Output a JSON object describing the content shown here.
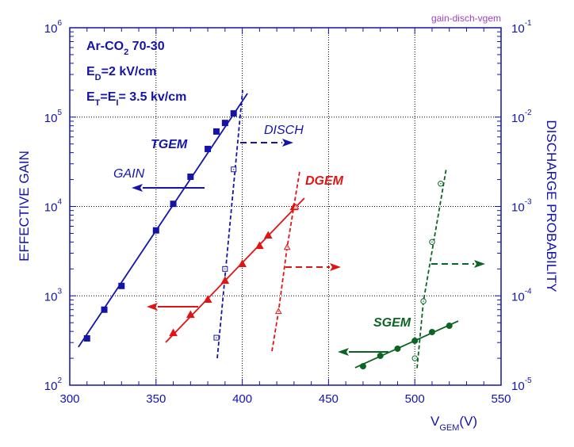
{
  "chart_data": {
    "type": "scatter",
    "file_label": "gain-disch-vgem",
    "xlabel": "V",
    "xlabel_sub": "GEM",
    "xlabel_unit": "(V)",
    "ylabel_left": "EFFECTIVE GAIN",
    "ylabel_right": "DISCHARGE PROBABILITY",
    "xlim": [
      300,
      550
    ],
    "ylim_left": [
      100,
      1000000
    ],
    "ylim_right": [
      1e-05,
      0.1
    ],
    "yscale": "log",
    "grid": "dotted at major ticks",
    "x_ticks": [
      "300",
      "350",
      "400",
      "450",
      "500",
      "550"
    ],
    "y_left_ticks": [
      {
        "base": "10",
        "exp": "2"
      },
      {
        "base": "10",
        "exp": "3"
      },
      {
        "base": "10",
        "exp": "4"
      },
      {
        "base": "10",
        "exp": "5"
      },
      {
        "base": "10",
        "exp": "6"
      }
    ],
    "y_right_ticks": [
      {
        "base": "10",
        "exp": "-5"
      },
      {
        "base": "10",
        "exp": "-4"
      },
      {
        "base": "10",
        "exp": "-3"
      },
      {
        "base": "10",
        "exp": "-2"
      },
      {
        "base": "10",
        "exp": "-1"
      }
    ],
    "annotations": {
      "gas_main": "Ar-CO",
      "gas_sub": "2",
      "gas_rest": " 70-30",
      "ed_main": "E",
      "ed_sub": "D",
      "ed_rest": "=2 kV/cm",
      "et_main": "E",
      "et_sub": "T",
      "et_mid": "=E",
      "et_sub2": "I",
      "et_rest": "= 3.5 kv/cm",
      "gain_label": "GAIN",
      "disch_label": "DISCH"
    },
    "series": [
      {
        "name": "TGEM",
        "color": "#1414a8",
        "kind": "gain",
        "marker": "square-filled",
        "x": [
          310,
          320,
          330,
          350,
          360,
          370,
          380,
          385,
          390,
          395
        ],
        "y": [
          334,
          700,
          1290,
          5400,
          10700,
          21500,
          44000,
          69000,
          86000,
          110000
        ],
        "fit": [
          [
            305,
            267
          ],
          [
            403,
            184000
          ]
        ]
      },
      {
        "name": "TGEM",
        "color": "#1414a8",
        "kind": "discharge",
        "marker": "square-open",
        "x": [
          385,
          390,
          395
        ],
        "y": [
          3.4e-05,
          0.0002,
          0.0026
        ],
        "curve": [
          [
            385.5,
            2e-05
          ],
          [
            400.2,
            0.02
          ]
        ]
      },
      {
        "name": "DGEM",
        "color": "#e01414",
        "kind": "gain",
        "marker": "triangle-filled",
        "x": [
          360,
          370,
          380,
          390,
          400,
          410,
          415,
          430
        ],
        "y": [
          385,
          615,
          910,
          1480,
          2280,
          3640,
          4750,
          9900
        ],
        "fit": [
          [
            355.6,
            301
          ],
          [
            436,
            12400
          ]
        ]
      },
      {
        "name": "DGEM",
        "color": "#e01414",
        "kind": "discharge",
        "marker": "triangle-open",
        "x": [
          421,
          426,
          431
        ],
        "y": [
          6.7e-05,
          0.00035,
          0.00099
        ],
        "curve": [
          [
            417.2,
            2.4e-05
          ],
          [
            421,
            6.7e-05
          ],
          [
            426,
            0.00035
          ],
          [
            433.3,
            0.0025
          ]
        ]
      },
      {
        "name": "SGEM",
        "color": "#0c6422",
        "kind": "gain",
        "marker": "circle-filled",
        "x": [
          470,
          480,
          490,
          500,
          510,
          520
        ],
        "y": [
          163,
          213,
          256,
          314,
          393,
          462
        ],
        "fit": [
          [
            465.4,
            157
          ],
          [
            525.2,
            522
          ]
        ]
      },
      {
        "name": "SGEM",
        "color": "#0c6422",
        "kind": "discharge",
        "marker": "circle-open",
        "x": [
          500,
          505,
          510,
          515
        ],
        "y": [
          2e-05,
          8.7e-05,
          0.0004,
          0.0018
        ],
        "curve": [
          [
            501.3,
            1.55e-05
          ],
          [
            505,
            8.7e-05
          ],
          [
            518.3,
            0.0027
          ]
        ]
      }
    ]
  }
}
